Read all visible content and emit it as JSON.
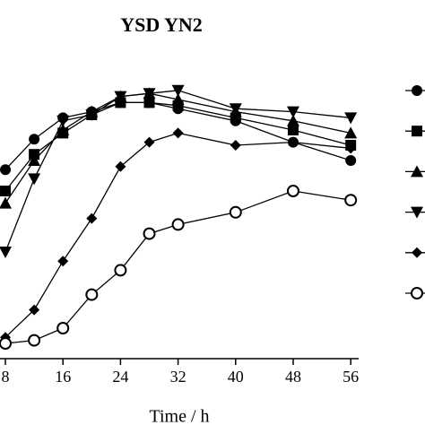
{
  "chart_data": {
    "type": "line",
    "title": "YSD YN2",
    "x_label": "Time / h",
    "x": [
      8,
      12,
      16,
      20,
      24,
      28,
      32,
      40,
      48,
      56
    ],
    "xlim": [
      7.25,
      57.1
    ],
    "xticks": [
      8,
      16,
      24,
      32,
      40,
      48,
      56
    ],
    "ylim": [
      0,
      10
    ],
    "legend": "right",
    "series": [
      {
        "color": "#000",
        "marker": "circle",
        "values": [
          6.2,
          7.2,
          7.9,
          8.1,
          8.4,
          8.4,
          8.2,
          7.8,
          7.1,
          6.5
        ]
      },
      {
        "color": "#000",
        "marker": "square",
        "values": [
          5.5,
          6.7,
          7.4,
          8.0,
          8.4,
          8.4,
          8.3,
          7.9,
          7.5,
          7.0
        ]
      },
      {
        "color": "#000",
        "marker": "triangle",
        "values": [
          5.1,
          6.5,
          7.5,
          8.1,
          8.6,
          8.7,
          8.5,
          8.1,
          7.8,
          7.4
        ]
      },
      {
        "color": "#000",
        "marker": "triangle-down",
        "values": [
          3.5,
          5.9,
          7.8,
          8.0,
          8.6,
          8.7,
          8.8,
          8.2,
          8.1,
          7.9
        ]
      },
      {
        "color": "#000",
        "marker": "diamond",
        "values": [
          0.7,
          1.6,
          3.2,
          4.6,
          6.3,
          7.1,
          7.4,
          7.0,
          7.1,
          6.9
        ]
      },
      {
        "color": "#000",
        "marker": "open-circle",
        "values": [
          0.5,
          0.6,
          1.0,
          2.1,
          2.9,
          4.1,
          4.4,
          4.8,
          5.5,
          5.2
        ]
      }
    ]
  }
}
